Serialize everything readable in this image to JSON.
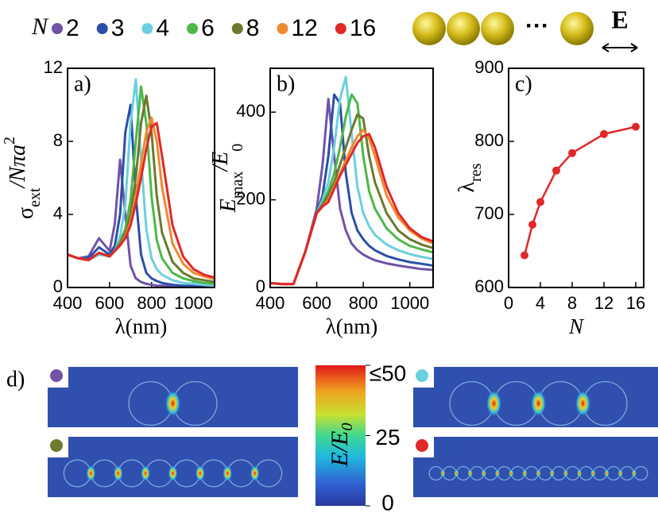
{
  "chart_data": [
    {
      "type": "line",
      "label": "a)",
      "legend_title": "N",
      "x_label": "λ(nm)",
      "y_label": {
        "base": "σ",
        "sub": "ext",
        "rest": "/Nπa",
        "sup": "2"
      },
      "xlim": [
        400,
        1100
      ],
      "xticks": [
        400,
        600,
        800,
        1000
      ],
      "ylim": [
        0,
        12
      ],
      "yticks": [
        0,
        4,
        8,
        12
      ],
      "x": [
        400,
        450,
        500,
        550,
        600,
        625,
        650,
        675,
        700,
        725,
        750,
        775,
        800,
        825,
        850,
        900,
        950,
        1000,
        1050,
        1100
      ],
      "series": [
        {
          "name": "2",
          "color": "#7052a8",
          "values": [
            1.8,
            1.6,
            1.7,
            2.7,
            2.0,
            3.5,
            7.0,
            4.0,
            1.2,
            0.5,
            0.3,
            0.2,
            0.15,
            0.1,
            0.1,
            0.05,
            0.05,
            0.03,
            0.03,
            0.02
          ]
        },
        {
          "name": "3",
          "color": "#2b4fa8",
          "values": [
            1.8,
            1.6,
            1.6,
            2.2,
            1.8,
            2.3,
            4.0,
            8.5,
            10.0,
            5.0,
            1.8,
            0.8,
            0.5,
            0.35,
            0.25,
            0.15,
            0.1,
            0.08,
            0.06,
            0.05
          ]
        },
        {
          "name": "4",
          "color": "#6ccfe0",
          "values": [
            1.8,
            1.6,
            1.5,
            1.8,
            1.7,
            2.0,
            2.8,
            4.5,
            9.0,
            11.4,
            7.0,
            3.2,
            1.6,
            1.0,
            0.7,
            0.4,
            0.25,
            0.2,
            0.15,
            0.1
          ]
        },
        {
          "name": "6",
          "color": "#4cb848",
          "values": [
            1.8,
            1.6,
            1.5,
            1.9,
            1.7,
            2.0,
            2.5,
            3.2,
            4.8,
            8.0,
            11.0,
            9.0,
            5.0,
            2.6,
            1.6,
            0.8,
            0.5,
            0.35,
            0.25,
            0.2
          ]
        },
        {
          "name": "8",
          "color": "#6b7a2e",
          "values": [
            1.8,
            1.6,
            1.5,
            1.9,
            1.7,
            2.0,
            2.4,
            3.0,
            4.0,
            6.0,
            9.0,
            10.5,
            8.5,
            5.0,
            3.0,
            1.4,
            0.8,
            0.5,
            0.4,
            0.3
          ]
        },
        {
          "name": "12",
          "color": "#f08a30",
          "values": [
            1.8,
            1.6,
            1.5,
            1.9,
            1.7,
            2.0,
            2.3,
            2.8,
            3.6,
            5.0,
            6.8,
            8.5,
            9.3,
            8.0,
            5.5,
            2.4,
            1.3,
            0.8,
            0.6,
            0.45
          ]
        },
        {
          "name": "16",
          "color": "#e02828",
          "values": [
            1.8,
            1.6,
            1.5,
            1.9,
            1.7,
            2.0,
            2.3,
            2.7,
            3.4,
            4.6,
            6.0,
            7.6,
            8.8,
            9.0,
            7.2,
            3.4,
            1.7,
            1.0,
            0.7,
            0.55
          ]
        }
      ]
    },
    {
      "type": "line",
      "label": "b)",
      "x_label": "λ(nm)",
      "y_label": {
        "base": "E",
        "sub": "max",
        "rest": "/E",
        "sub2": "0"
      },
      "xlim": [
        400,
        1100
      ],
      "xticks": [
        400,
        600,
        800,
        1000
      ],
      "ylim": [
        0,
        500
      ],
      "yticks": [
        0,
        200,
        400
      ],
      "x": [
        400,
        450,
        500,
        550,
        600,
        625,
        650,
        675,
        700,
        725,
        750,
        775,
        800,
        825,
        850,
        900,
        950,
        1000,
        1050,
        1100
      ],
      "series": [
        {
          "name": "2",
          "color": "#7052a8",
          "values": [
            10,
            8,
            8,
            80,
            180,
            280,
            430,
            300,
            180,
            130,
            100,
            85,
            75,
            68,
            62,
            55,
            50,
            46,
            42,
            40
          ]
        },
        {
          "name": "3",
          "color": "#2b4fa8",
          "values": [
            10,
            8,
            8,
            80,
            170,
            210,
            300,
            440,
            420,
            260,
            170,
            130,
            110,
            95,
            85,
            72,
            64,
            58,
            54,
            50
          ]
        },
        {
          "name": "4",
          "color": "#6ccfe0",
          "values": [
            10,
            8,
            8,
            80,
            170,
            200,
            240,
            320,
            430,
            480,
            350,
            230,
            170,
            140,
            120,
            98,
            85,
            76,
            70,
            65
          ]
        },
        {
          "name": "6",
          "color": "#4cb848",
          "values": [
            10,
            8,
            8,
            80,
            170,
            190,
            220,
            260,
            320,
            390,
            440,
            420,
            300,
            220,
            180,
            135,
            110,
            95,
            87,
            80
          ]
        },
        {
          "name": "8",
          "color": "#6b7a2e",
          "values": [
            10,
            8,
            8,
            80,
            170,
            190,
            210,
            240,
            280,
            320,
            360,
            395,
            385,
            300,
            240,
            170,
            130,
            110,
            98,
            90
          ]
        },
        {
          "name": "12",
          "color": "#f08a30",
          "values": [
            10,
            8,
            8,
            80,
            170,
            185,
            200,
            230,
            260,
            290,
            320,
            345,
            360,
            340,
            300,
            210,
            160,
            130,
            112,
            100
          ]
        },
        {
          "name": "16",
          "color": "#e02828",
          "values": [
            10,
            8,
            8,
            80,
            170,
            185,
            195,
            225,
            255,
            280,
            305,
            330,
            345,
            350,
            320,
            230,
            170,
            135,
            115,
            105
          ]
        }
      ]
    },
    {
      "type": "scatter",
      "label": "c)",
      "x_label": "N",
      "y_label": {
        "base": "λ",
        "sub": "res"
      },
      "xlim": [
        0,
        17
      ],
      "xticks": [
        0,
        4,
        8,
        12,
        16
      ],
      "ylim": [
        600,
        900
      ],
      "yticks": [
        600,
        700,
        800,
        900
      ],
      "x": [
        2,
        3,
        4,
        6,
        8,
        12,
        16
      ],
      "values": [
        644,
        686,
        717,
        760,
        784,
        810,
        820
      ],
      "color": "#e02828"
    }
  ],
  "schematic": {
    "dots": "···",
    "field_label": "E"
  },
  "panel_d": {
    "label": "d)",
    "colorbar": {
      "label": "E/E",
      "label_sub": "0",
      "lim": [
        0,
        50
      ],
      "ticks": [
        {
          "value": 50,
          "label": "≤50"
        },
        25,
        0
      ]
    },
    "maps": [
      {
        "color": "#7052a8",
        "particles": 2
      },
      {
        "color": "#6ccfe0",
        "particles": 4
      },
      {
        "color": "#6b7a2e",
        "particles": 8
      },
      {
        "color": "#e02828",
        "particles": 16
      }
    ]
  }
}
